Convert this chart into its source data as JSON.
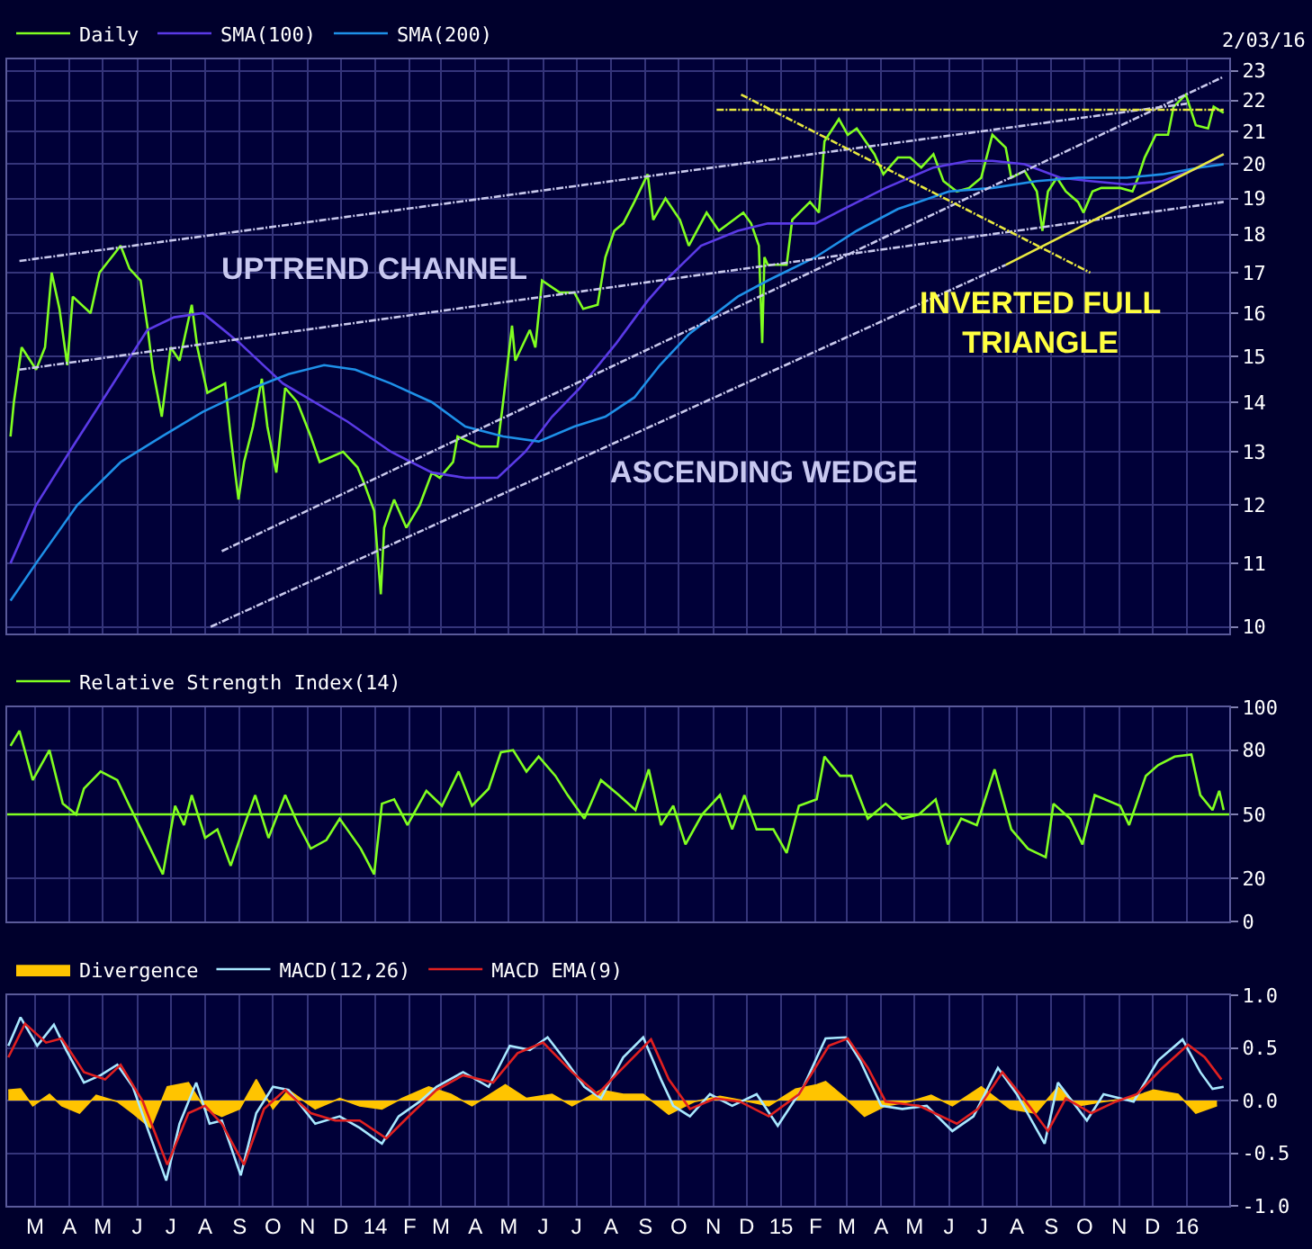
{
  "chart_data": [
    {
      "type": "line",
      "log": "y",
      "grid": true,
      "legend": "top left",
      "tick_labels": "y",
      "xlim": [
        "2013-02-04",
        "2016-02-08"
      ],
      "ylim": [
        9.9,
        23.4
      ],
      "yticks": [
        10,
        11,
        12,
        13,
        14,
        15,
        16,
        17,
        18,
        19,
        20,
        21,
        22,
        23
      ],
      "xticks": [
        {
          "value": "2013-03-01",
          "label": null
        },
        {
          "value": "2013-04-01",
          "label": null
        },
        {
          "value": "2013-05-01",
          "label": null
        },
        {
          "value": "2013-06-01",
          "label": null
        },
        {
          "value": "2013-07-01",
          "label": null
        },
        {
          "value": "2013-08-01",
          "label": null
        },
        {
          "value": "2013-09-01",
          "label": null
        },
        {
          "value": "2013-10-01",
          "label": null
        },
        {
          "value": "2013-11-01",
          "label": null
        },
        {
          "value": "2013-12-01",
          "label": null
        },
        {
          "value": "2014-01-01",
          "label": null
        },
        {
          "value": "2014-02-01",
          "label": null
        },
        {
          "value": "2014-03-01",
          "label": null
        },
        {
          "value": "2014-04-01",
          "label": null
        },
        {
          "value": "2014-05-01",
          "label": null
        },
        {
          "value": "2014-06-01",
          "label": null
        },
        {
          "value": "2014-07-01",
          "label": null
        },
        {
          "value": "2014-08-01",
          "label": null
        },
        {
          "value": "2014-09-01",
          "label": null
        },
        {
          "value": "2014-10-01",
          "label": null
        },
        {
          "value": "2014-11-01",
          "label": null
        },
        {
          "value": "2014-12-01",
          "label": null
        },
        {
          "value": "2015-01-01",
          "label": null
        },
        {
          "value": "2015-02-01",
          "label": null
        },
        {
          "value": "2015-03-01",
          "label": null
        },
        {
          "value": "2015-04-01",
          "label": null
        },
        {
          "value": "2015-05-01",
          "label": null
        },
        {
          "value": "2015-06-01",
          "label": null
        },
        {
          "value": "2015-07-01",
          "label": null
        },
        {
          "value": "2015-08-01",
          "label": null
        },
        {
          "value": "2015-09-01",
          "label": null
        },
        {
          "value": "2015-10-01",
          "label": null
        },
        {
          "value": "2015-11-01",
          "label": null
        },
        {
          "value": "2015-12-01",
          "label": null
        },
        {
          "value": "2016-01-01",
          "label": null
        }
      ],
      "annotations": [
        "2/03/16",
        "UPTREND CHANNEL",
        "ASCENDING WEDGE",
        "INVERTED FULL\nTRIANGLE"
      ],
      "series": [
        {
          "name": "Daily",
          "color": "#80ff20",
          "x": [
            "2013-02-07",
            "2013-02-10",
            "2013-02-17",
            "2013-03-02",
            "2013-03-10",
            "2013-03-16",
            "2013-03-23",
            "2013-03-30",
            "2013-04-04",
            "2013-04-20",
            "2013-04-28",
            "2013-05-17",
            "2013-05-25",
            "2013-06-04",
            "2013-06-10",
            "2013-06-15",
            "2013-06-23",
            "2013-07-01",
            "2013-07-09",
            "2013-07-20",
            "2013-07-25",
            "2013-08-03",
            "2013-08-19",
            "2013-08-24",
            "2013-08-31",
            "2013-09-05",
            "2013-09-13",
            "2013-09-21",
            "2013-09-26",
            "2013-10-04",
            "2013-10-12",
            "2013-10-23",
            "2013-11-04",
            "2013-11-12",
            "2013-12-03",
            "2013-12-16",
            "2013-12-22",
            "2013-12-31",
            "2014-01-06",
            "2014-01-09",
            "2014-01-18",
            "2014-01-29",
            "2014-02-10",
            "2014-02-21",
            "2014-02-28",
            "2014-03-12",
            "2014-03-16",
            "2014-04-05",
            "2014-04-21",
            "2014-04-26",
            "2014-05-04",
            "2014-05-07",
            "2014-05-20",
            "2014-05-25",
            "2014-05-31",
            "2014-06-16",
            "2014-06-29",
            "2014-07-07",
            "2014-07-20",
            "2014-07-27",
            "2014-08-04",
            "2014-08-12",
            "2014-08-22",
            "2014-09-03",
            "2014-09-08",
            "2014-09-19",
            "2014-10-02",
            "2014-10-10",
            "2014-10-26",
            "2014-11-06",
            "2014-11-28",
            "2014-12-05",
            "2014-12-12",
            "2014-12-15",
            "2014-12-17",
            "2014-12-20",
            "2015-01-06",
            "2015-01-11",
            "2015-01-27",
            "2015-02-04",
            "2015-02-09",
            "2015-02-22",
            "2015-03-02",
            "2015-03-10",
            "2015-03-26",
            "2015-04-03",
            "2015-04-16",
            "2015-04-27",
            "2015-05-07",
            "2015-05-18",
            "2015-05-27",
            "2015-06-08",
            "2015-06-19",
            "2015-06-30",
            "2015-07-10",
            "2015-07-22",
            "2015-07-27",
            "2015-08-08",
            "2015-08-19",
            "2015-08-24",
            "2015-08-29",
            "2015-09-06",
            "2015-09-14",
            "2015-09-25",
            "2015-09-30",
            "2015-10-08",
            "2015-10-16",
            "2015-11-02",
            "2015-11-13",
            "2015-11-18",
            "2015-11-24",
            "2015-12-04",
            "2015-12-15",
            "2015-12-20",
            "2015-12-31",
            "2016-01-09",
            "2016-01-20",
            "2016-01-25",
            "2016-02-03"
          ],
          "values": [
            13.3,
            14.0,
            15.2,
            14.7,
            15.2,
            17.0,
            16.1,
            14.8,
            16.4,
            16.0,
            17.0,
            17.7,
            17.1,
            16.8,
            15.7,
            14.7,
            13.7,
            15.2,
            14.9,
            16.2,
            15.2,
            14.2,
            14.4,
            13.3,
            12.1,
            12.8,
            13.5,
            14.5,
            13.5,
            12.6,
            14.3,
            14.0,
            13.3,
            12.8,
            13.0,
            12.7,
            12.4,
            11.9,
            10.5,
            11.6,
            12.1,
            11.6,
            12.0,
            12.6,
            12.5,
            12.8,
            13.3,
            13.1,
            13.1,
            14.0,
            15.7,
            14.9,
            15.6,
            15.2,
            16.8,
            16.5,
            16.5,
            16.1,
            16.2,
            17.4,
            18.1,
            18.3,
            18.9,
            19.7,
            18.4,
            19.0,
            18.4,
            17.7,
            18.6,
            18.1,
            18.6,
            18.3,
            17.7,
            15.3,
            17.4,
            17.2,
            17.2,
            18.4,
            18.9,
            18.6,
            20.7,
            21.4,
            20.9,
            21.1,
            20.3,
            19.7,
            20.2,
            20.2,
            19.9,
            20.3,
            19.5,
            19.2,
            19.3,
            19.6,
            20.9,
            20.5,
            19.6,
            19.8,
            19.2,
            18.1,
            19.2,
            19.6,
            19.2,
            18.9,
            18.6,
            19.2,
            19.3,
            19.3,
            19.2,
            19.6,
            20.2,
            20.9,
            20.9,
            21.8,
            22.2,
            21.2,
            21.1,
            21.8,
            21.6
          ]
        },
        {
          "name": "SMA(100)",
          "color": "#5a3ae6",
          "x": [
            "2013-02-07",
            "2013-03-02",
            "2013-04-04",
            "2013-05-05",
            "2013-06-10",
            "2013-07-04",
            "2013-07-30",
            "2013-09-01",
            "2013-10-10",
            "2013-12-07",
            "2014-01-15",
            "2014-02-21",
            "2014-03-23",
            "2014-04-21",
            "2014-05-16",
            "2014-06-09",
            "2014-07-04",
            "2014-08-06",
            "2014-09-03",
            "2014-09-19",
            "2014-10-21",
            "2014-11-23",
            "2014-12-20",
            "2015-02-01",
            "2015-02-26",
            "2015-04-05",
            "2015-05-18",
            "2015-06-19",
            "2015-07-10",
            "2015-08-08",
            "2015-09-09",
            "2015-10-06",
            "2015-11-08",
            "2015-12-10",
            "2016-01-12",
            "2016-02-03"
          ],
          "values": [
            11.0,
            12.0,
            13.1,
            14.2,
            15.6,
            15.9,
            16.0,
            15.3,
            14.4,
            13.6,
            13.0,
            12.6,
            12.5,
            12.5,
            13.0,
            13.7,
            14.3,
            15.3,
            16.3,
            16.8,
            17.7,
            18.1,
            18.3,
            18.3,
            18.7,
            19.3,
            19.9,
            20.1,
            20.1,
            20.0,
            19.6,
            19.5,
            19.4,
            19.5,
            19.9,
            20.3
          ]
        },
        {
          "name": "SMA(200)",
          "color": "#1e90e8",
          "x": [
            "2013-02-07",
            "2013-03-02",
            "2013-04-08",
            "2013-05-17",
            "2013-06-23",
            "2013-07-30",
            "2013-09-13",
            "2013-10-15",
            "2013-11-16",
            "2013-12-14",
            "2014-01-15",
            "2014-02-21",
            "2014-03-23",
            "2014-04-26",
            "2014-05-28",
            "2014-06-29",
            "2014-07-27",
            "2014-08-22",
            "2014-09-14",
            "2014-10-10",
            "2014-11-23",
            "2014-12-20",
            "2015-02-01",
            "2015-03-10",
            "2015-04-16",
            "2015-06-01",
            "2015-07-10",
            "2015-08-19",
            "2015-09-25",
            "2015-11-08",
            "2015-12-10",
            "2016-01-12",
            "2016-02-03"
          ],
          "values": [
            10.4,
            11.0,
            12.0,
            12.8,
            13.3,
            13.8,
            14.3,
            14.6,
            14.8,
            14.7,
            14.4,
            14.0,
            13.5,
            13.3,
            13.2,
            13.5,
            13.7,
            14.1,
            14.8,
            15.5,
            16.4,
            16.8,
            17.4,
            18.1,
            18.7,
            19.2,
            19.3,
            19.5,
            19.6,
            19.6,
            19.7,
            19.9,
            20.0
          ]
        },
        {
          "color": "#c8c8ec",
          "line_style": "dashed",
          "x": [
            "2013-02-15",
            "2016-01-01"
          ],
          "values": [
            17.3,
            21.9
          ]
        },
        {
          "color": "#c8c8ec",
          "line_style": "dashed",
          "x": [
            "2013-02-15",
            "2016-02-03"
          ],
          "values": [
            14.7,
            18.9
          ]
        },
        {
          "color": "#c8c8ec",
          "line_style": "dashed",
          "x": [
            "2013-08-16",
            "2016-02-03"
          ],
          "values": [
            11.2,
            22.8
          ]
        },
        {
          "color": "#c8c8ec",
          "line_style": "dashed",
          "x": [
            "2013-08-06",
            "2015-07-22"
          ],
          "values": [
            10.0,
            17.2
          ]
        },
        {
          "color": "#e8e840",
          "line_style": "solid",
          "x": [
            "2015-07-22",
            "2016-02-03"
          ],
          "values": [
            17.2,
            20.3
          ]
        },
        {
          "color": "#e8e840",
          "line_style": "dashed",
          "x": [
            "2014-11-04",
            "2016-02-03"
          ],
          "values": [
            21.7,
            21.7
          ]
        },
        {
          "color": "#e8e840",
          "line_style": "dashed",
          "x": [
            "2014-11-26",
            "2015-10-06"
          ],
          "values": [
            22.2,
            17.0
          ]
        }
      ]
    },
    {
      "type": "line",
      "grid": true,
      "legend": "top left",
      "tick_labels": "y",
      "xlim": [
        "2013-02-04",
        "2016-02-08"
      ],
      "ylim": [
        0,
        100
      ],
      "yticks": [
        0,
        20,
        50,
        80,
        100
      ],
      "xticks": [
        {
          "value": "2013-03-01",
          "label": null
        },
        {
          "value": "2013-04-01",
          "label": null
        },
        {
          "value": "2013-05-01",
          "label": null
        },
        {
          "value": "2013-06-01",
          "label": null
        },
        {
          "value": "2013-07-01",
          "label": null
        },
        {
          "value": "2013-08-01",
          "label": null
        },
        {
          "value": "2013-09-01",
          "label": null
        },
        {
          "value": "2013-10-01",
          "label": null
        },
        {
          "value": "2013-11-01",
          "label": null
        },
        {
          "value": "2013-12-01",
          "label": null
        },
        {
          "value": "2014-01-01",
          "label": null
        },
        {
          "value": "2014-02-01",
          "label": null
        },
        {
          "value": "2014-03-01",
          "label": null
        },
        {
          "value": "2014-04-01",
          "label": null
        },
        {
          "value": "2014-05-01",
          "label": null
        },
        {
          "value": "2014-06-01",
          "label": null
        },
        {
          "value": "2014-07-01",
          "label": null
        },
        {
          "value": "2014-08-01",
          "label": null
        },
        {
          "value": "2014-09-01",
          "label": null
        },
        {
          "value": "2014-10-01",
          "label": null
        },
        {
          "value": "2014-11-01",
          "label": null
        },
        {
          "value": "2014-12-01",
          "label": null
        },
        {
          "value": "2015-01-01",
          "label": null
        },
        {
          "value": "2015-02-01",
          "label": null
        },
        {
          "value": "2015-03-01",
          "label": null
        },
        {
          "value": "2015-04-01",
          "label": null
        },
        {
          "value": "2015-05-01",
          "label": null
        },
        {
          "value": "2015-06-01",
          "label": null
        },
        {
          "value": "2015-07-01",
          "label": null
        },
        {
          "value": "2015-08-01",
          "label": null
        },
        {
          "value": "2015-09-01",
          "label": null
        },
        {
          "value": "2015-10-01",
          "label": null
        },
        {
          "value": "2015-11-01",
          "label": null
        },
        {
          "value": "2015-12-01",
          "label": null
        },
        {
          "value": "2016-01-01",
          "label": null
        }
      ],
      "ref_lines": [
        {
          "axis": "y",
          "value": 50,
          "color": "#80ff20"
        }
      ],
      "series": [
        {
          "name": "Relative Strength Index(14)",
          "color": "#80ff20",
          "x": [
            "2013-02-07",
            "2013-02-15",
            "2013-02-27",
            "2013-03-14",
            "2013-03-26",
            "2013-04-07",
            "2013-04-14",
            "2013-04-29",
            "2013-05-14",
            "2013-05-25",
            "2013-06-09",
            "2013-06-24",
            "2013-07-05",
            "2013-07-13",
            "2013-07-20",
            "2013-08-01",
            "2013-08-12",
            "2013-08-24",
            "2013-09-04",
            "2013-09-15",
            "2013-09-27",
            "2013-10-12",
            "2013-10-23",
            "2013-11-04",
            "2013-11-18",
            "2013-11-30",
            "2013-12-19",
            "2013-12-31",
            "2014-01-07",
            "2014-01-18",
            "2014-01-30",
            "2014-02-16",
            "2014-03-02",
            "2014-03-17",
            "2014-03-29",
            "2014-04-13",
            "2014-04-24",
            "2014-05-05",
            "2014-05-17",
            "2014-05-28",
            "2014-06-12",
            "2014-06-23",
            "2014-07-08",
            "2014-07-23",
            "2014-08-08",
            "2014-08-23",
            "2014-09-04",
            "2014-09-15",
            "2014-09-26",
            "2014-10-07",
            "2014-10-22",
            "2014-11-07",
            "2014-11-18",
            "2014-11-29",
            "2014-12-10",
            "2014-12-25",
            "2015-01-06",
            "2015-01-17",
            "2015-02-02",
            "2015-02-09",
            "2015-02-23",
            "2015-03-05",
            "2015-03-20",
            "2015-04-05",
            "2015-04-20",
            "2015-05-05",
            "2015-05-20",
            "2015-05-31",
            "2015-06-12",
            "2015-06-26",
            "2015-07-12",
            "2015-07-27",
            "2015-08-11",
            "2015-08-27",
            "2015-09-03",
            "2015-09-18",
            "2015-09-29",
            "2015-10-10",
            "2015-11-02",
            "2015-11-10",
            "2015-11-25",
            "2015-12-06",
            "2015-12-21",
            "2016-01-05",
            "2016-01-13",
            "2016-01-24",
            "2016-01-30",
            "2016-02-03"
          ],
          "values": [
            82,
            89,
            66,
            80,
            55,
            50,
            62,
            70,
            66,
            54,
            38,
            22,
            54,
            45,
            59,
            39,
            43,
            26,
            43,
            59,
            39,
            59,
            46,
            34,
            38,
            48,
            34,
            22,
            55,
            57,
            45,
            61,
            54,
            70,
            54,
            62,
            79,
            80,
            70,
            77,
            68,
            59,
            48,
            66,
            59,
            52,
            71,
            45,
            54,
            36,
            50,
            59,
            43,
            59,
            43,
            43,
            32,
            54,
            57,
            77,
            68,
            68,
            48,
            55,
            48,
            50,
            57,
            36,
            48,
            45,
            71,
            43,
            34,
            30,
            55,
            48,
            36,
            59,
            54,
            45,
            68,
            73,
            77,
            78,
            59,
            52,
            61,
            52
          ]
        }
      ]
    },
    {
      "type": "line",
      "grid": true,
      "legend": "top left",
      "xlim": [
        "2013-02-04",
        "2016-02-08"
      ],
      "ylim": [
        -1.0,
        1.0
      ],
      "yticks": [
        {
          "value": -1,
          "label": "-1.0"
        },
        {
          "value": -0.5,
          "label": "-0.5"
        },
        {
          "value": 0,
          "label": "0.0"
        },
        {
          "value": 0.5,
          "label": "0.5"
        },
        {
          "value": 1,
          "label": "1.0"
        }
      ],
      "xticks": [
        {
          "value": "2013-03-01",
          "label": "M"
        },
        {
          "value": "2013-04-01",
          "label": "A"
        },
        {
          "value": "2013-05-01",
          "label": "M"
        },
        {
          "value": "2013-06-01",
          "label": "J"
        },
        {
          "value": "2013-07-01",
          "label": "J"
        },
        {
          "value": "2013-08-01",
          "label": "A"
        },
        {
          "value": "2013-09-01",
          "label": "S"
        },
        {
          "value": "2013-10-01",
          "label": "O"
        },
        {
          "value": "2013-11-01",
          "label": "N"
        },
        {
          "value": "2013-12-01",
          "label": "D"
        },
        {
          "value": "2014-01-01",
          "label": "14"
        },
        {
          "value": "2014-02-01",
          "label": "F"
        },
        {
          "value": "2014-03-01",
          "label": "M"
        },
        {
          "value": "2014-04-01",
          "label": "A"
        },
        {
          "value": "2014-05-01",
          "label": "M"
        },
        {
          "value": "2014-06-01",
          "label": "J"
        },
        {
          "value": "2014-07-01",
          "label": "J"
        },
        {
          "value": "2014-08-01",
          "label": "A"
        },
        {
          "value": "2014-09-01",
          "label": "S"
        },
        {
          "value": "2014-10-01",
          "label": "O"
        },
        {
          "value": "2014-11-01",
          "label": "N"
        },
        {
          "value": "2014-12-01",
          "label": "D"
        },
        {
          "value": "2015-01-01",
          "label": "15"
        },
        {
          "value": "2015-02-01",
          "label": "F"
        },
        {
          "value": "2015-03-01",
          "label": "M"
        },
        {
          "value": "2015-04-01",
          "label": "A"
        },
        {
          "value": "2015-05-01",
          "label": "M"
        },
        {
          "value": "2015-06-01",
          "label": "J"
        },
        {
          "value": "2015-07-01",
          "label": "J"
        },
        {
          "value": "2015-08-01",
          "label": "A"
        },
        {
          "value": "2015-09-01",
          "label": "S"
        },
        {
          "value": "2015-10-01",
          "label": "O"
        },
        {
          "value": "2015-11-01",
          "label": "N"
        },
        {
          "value": "2015-12-01",
          "label": "D"
        },
        {
          "value": "2016-01-01",
          "label": "16"
        }
      ],
      "series": [
        {
          "name": "Divergence",
          "type": "area",
          "color": "#ffc400",
          "x": [
            "2013-02-05",
            "2013-02-16",
            "2013-02-27",
            "2013-03-14",
            "2013-03-25",
            "2013-04-10",
            "2013-04-25",
            "2013-05-14",
            "2013-05-28",
            "2013-06-13",
            "2013-06-28",
            "2013-07-17",
            "2013-08-01",
            "2013-08-16",
            "2013-09-01",
            "2013-09-16",
            "2013-10-01",
            "2013-10-15",
            "2013-11-08",
            "2013-11-30",
            "2013-12-18",
            "2014-01-07",
            "2014-01-25",
            "2014-02-18",
            "2014-03-10",
            "2014-03-29",
            "2014-04-28",
            "2014-05-17",
            "2014-06-09",
            "2014-06-27",
            "2014-07-23",
            "2014-08-12",
            "2014-08-30",
            "2014-09-22",
            "2014-10-15",
            "2014-11-07",
            "2014-12-03",
            "2014-12-21",
            "2015-01-14",
            "2015-02-02",
            "2015-02-10",
            "2015-02-28",
            "2015-03-17",
            "2015-04-05",
            "2015-04-27",
            "2015-05-16",
            "2015-06-04",
            "2015-06-30",
            "2015-07-26",
            "2015-08-18",
            "2015-09-07",
            "2015-09-25",
            "2015-10-18",
            "2015-11-10",
            "2015-12-02",
            "2015-12-24",
            "2016-01-09",
            "2016-01-28"
          ],
          "values": [
            0.1,
            0.11,
            -0.05,
            0.06,
            -0.05,
            -0.12,
            0.05,
            -0.01,
            -0.12,
            -0.26,
            0.13,
            0.17,
            -0.08,
            -0.15,
            -0.08,
            0.2,
            -0.08,
            0.1,
            -0.08,
            0.02,
            -0.05,
            -0.08,
            0.02,
            0.13,
            0.06,
            -0.05,
            0.15,
            0.02,
            0.06,
            -0.05,
            0.1,
            0.06,
            0.06,
            -0.13,
            -0.01,
            0.04,
            -0.01,
            -0.05,
            0.11,
            0.15,
            0.18,
            0.02,
            -0.15,
            -0.05,
            -0.01,
            0.05,
            -0.05,
            0.13,
            -0.08,
            -0.12,
            0.13,
            -0.05,
            -0.01,
            0.02,
            0.1,
            0.06,
            -0.12,
            -0.05
          ]
        },
        {
          "name": "MACD(12,26)",
          "color": "#a8e8ff",
          "x": [
            "2013-02-05",
            "2013-02-16",
            "2013-03-03",
            "2013-03-18",
            "2013-03-29",
            "2013-04-14",
            "2013-04-29",
            "2013-05-14",
            "2013-05-28",
            "2013-06-10",
            "2013-06-27",
            "2013-07-09",
            "2013-07-24",
            "2013-08-05",
            "2013-08-16",
            "2013-09-02",
            "2013-09-16",
            "2013-10-01",
            "2013-10-15",
            "2013-11-08",
            "2013-11-30",
            "2013-12-18",
            "2014-01-07",
            "2014-01-22",
            "2014-02-10",
            "2014-02-25",
            "2014-03-21",
            "2014-04-13",
            "2014-05-02",
            "2014-05-20",
            "2014-06-05",
            "2014-06-24",
            "2014-07-08",
            "2014-07-23",
            "2014-08-12",
            "2014-08-30",
            "2014-09-15",
            "2014-09-26",
            "2014-10-11",
            "2014-10-29",
            "2014-11-18",
            "2014-12-10",
            "2014-12-29",
            "2015-01-21",
            "2015-02-10",
            "2015-02-28",
            "2015-03-13",
            "2015-04-01",
            "2015-04-20",
            "2015-05-12",
            "2015-06-04",
            "2015-06-23",
            "2015-07-15",
            "2015-08-01",
            "2015-08-26",
            "2015-09-07",
            "2015-10-03",
            "2015-10-18",
            "2015-11-14",
            "2015-12-06",
            "2015-12-28",
            "2016-01-13",
            "2016-01-24",
            "2016-02-03"
          ],
          "values": [
            0.52,
            0.79,
            0.52,
            0.72,
            0.48,
            0.17,
            0.24,
            0.34,
            0.13,
            -0.26,
            -0.76,
            -0.22,
            0.17,
            -0.22,
            -0.19,
            -0.71,
            -0.12,
            0.13,
            0.1,
            -0.22,
            -0.15,
            -0.26,
            -0.41,
            -0.15,
            -0.01,
            0.13,
            0.27,
            0.13,
            0.52,
            0.48,
            0.6,
            0.34,
            0.13,
            0.02,
            0.41,
            0.6,
            0.2,
            -0.05,
            -0.15,
            0.06,
            -0.05,
            0.06,
            -0.24,
            0.13,
            0.59,
            0.6,
            0.38,
            -0.05,
            -0.08,
            -0.05,
            -0.29,
            -0.15,
            0.31,
            0.06,
            -0.41,
            0.17,
            -0.19,
            0.06,
            -0.01,
            0.38,
            0.58,
            0.27,
            0.11,
            0.13
          ]
        },
        {
          "name": "MACD EMA(9)",
          "color": "#e02020",
          "x": [
            "2013-02-05",
            "2013-02-20",
            "2013-03-11",
            "2013-03-25",
            "2013-04-14",
            "2013-05-03",
            "2013-05-17",
            "2013-06-06",
            "2013-06-28",
            "2013-07-17",
            "2013-08-01",
            "2013-08-16",
            "2013-09-05",
            "2013-09-23",
            "2013-10-12",
            "2013-11-04",
            "2013-11-26",
            "2013-12-18",
            "2014-01-11",
            "2014-02-03",
            "2014-02-25",
            "2014-03-21",
            "2014-04-17",
            "2014-05-09",
            "2014-06-01",
            "2014-06-27",
            "2014-07-20",
            "2014-08-08",
            "2014-09-06",
            "2014-09-22",
            "2014-10-11",
            "2014-11-03",
            "2014-11-25",
            "2014-12-21",
            "2015-01-17",
            "2015-02-13",
            "2015-03-02",
            "2015-03-20",
            "2015-04-05",
            "2015-05-05",
            "2015-06-08",
            "2015-06-27",
            "2015-07-19",
            "2015-08-07",
            "2015-08-29",
            "2015-09-14",
            "2015-10-07",
            "2015-10-29",
            "2015-11-17",
            "2015-12-10",
            "2016-01-02",
            "2016-01-17",
            "2016-02-01"
          ],
          "values": [
            0.41,
            0.73,
            0.55,
            0.59,
            0.27,
            0.2,
            0.34,
            -0.01,
            -0.61,
            -0.12,
            -0.05,
            -0.22,
            -0.61,
            -0.08,
            0.1,
            -0.12,
            -0.19,
            -0.19,
            -0.36,
            -0.12,
            0.1,
            0.24,
            0.17,
            0.45,
            0.55,
            0.27,
            0.06,
            0.27,
            0.58,
            0.2,
            -0.08,
            0.02,
            -0.01,
            -0.15,
            0.06,
            0.52,
            0.59,
            0.31,
            -0.01,
            -0.05,
            -0.22,
            -0.08,
            0.27,
            0.02,
            -0.29,
            0.02,
            -0.12,
            -0.01,
            0.06,
            0.31,
            0.53,
            0.41,
            0.2
          ]
        }
      ]
    }
  ]
}
